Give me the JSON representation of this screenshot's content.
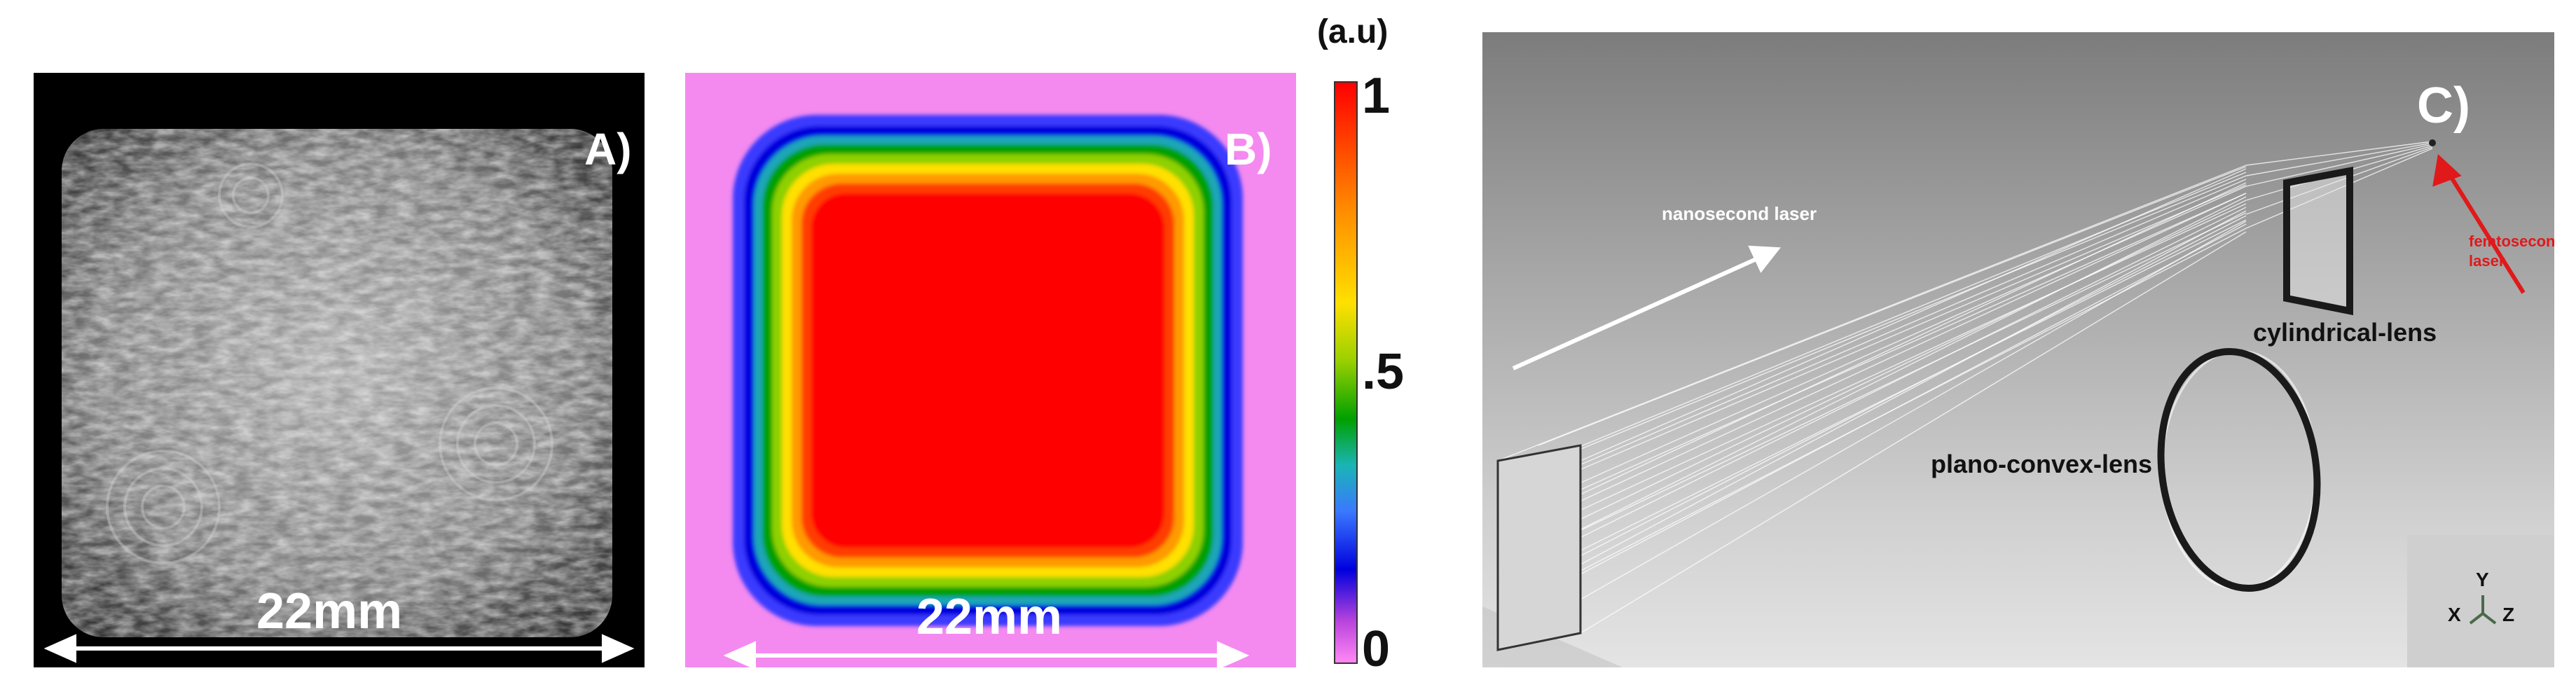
{
  "panel_a": {
    "letter": "A)",
    "scale": "22mm"
  },
  "panel_b": {
    "letter": "B)",
    "scale": "22mm"
  },
  "colorbar": {
    "unit": "(a.u)",
    "ticks": [
      "1",
      ".5",
      "0"
    ]
  },
  "panel_c": {
    "letter": "C)",
    "labels": {
      "nanosecond": "nanosecond laser",
      "femtosecond_line1": "femtosecond",
      "femtosecond_line2": "laser",
      "cylindrical": "cylindrical-lens",
      "plano": "plano-convex-lens"
    },
    "axes": {
      "x": "X",
      "y": "Y",
      "z": "Z"
    },
    "colors": {
      "femtosecond": "#e0191b"
    }
  }
}
